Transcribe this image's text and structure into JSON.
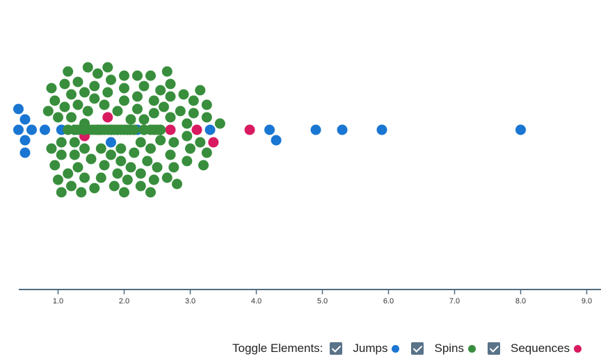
{
  "chart_data": {
    "type": "scatter",
    "x_ticks": [
      "1.0",
      "2.0",
      "3.0",
      "4.0",
      "5.0",
      "6.0",
      "7.0",
      "8.0",
      "9.0"
    ],
    "xlim": [
      0.3,
      9.2
    ],
    "colors": {
      "Jumps": "#1976d2",
      "Spins": "#388e3c",
      "Sequences": "#d81b60"
    },
    "series": [
      {
        "name": "Jumps",
        "x": [
          0.4,
          0.5,
          0.5,
          0.5,
          0.4,
          0.6,
          0.8,
          1.05,
          1.25,
          1.8,
          2.2,
          1.8,
          3.3,
          4.2,
          4.3,
          4.9,
          5.3,
          5.9,
          8.0
        ]
      },
      {
        "name": "Sequences",
        "x": [
          2.7,
          1.4,
          1.75,
          3.35,
          3.1,
          3.9
        ]
      },
      {
        "name": "Spins",
        "x": [
          1.4,
          1.6,
          1.8,
          2.0,
          2.25,
          2.45,
          1.25,
          1.4,
          1.65,
          1.9,
          2.1,
          2.3,
          2.55,
          1.05,
          1.2,
          1.45,
          1.7,
          1.95,
          2.15,
          2.4,
          2.7,
          1.0,
          1.25,
          1.5,
          1.7,
          1.95,
          2.2,
          2.45,
          2.75,
          2.95,
          3.15,
          1.05,
          1.3,
          1.55,
          1.75,
          2.0,
          2.2,
          2.45,
          2.7,
          2.95,
          3.25,
          0.9,
          1.2,
          1.4,
          1.65,
          1.9,
          2.1,
          2.35,
          2.6,
          2.85,
          3.05,
          3.25,
          0.85,
          1.1,
          1.3,
          1.55,
          1.8,
          2.0,
          2.25,
          2.5,
          2.7,
          3.0,
          3.25,
          3.45,
          0.95,
          1.15,
          1.4,
          1.6,
          1.85,
          2.05,
          2.3,
          2.55,
          2.75,
          3.05,
          3.2,
          1.1,
          1.3,
          1.55,
          1.75,
          2.0,
          2.25,
          2.45,
          2.7,
          2.95,
          3.15,
          0.95,
          1.2,
          1.45,
          1.7,
          1.95,
          2.2,
          2.4,
          2.65,
          2.9,
          0.9,
          1.15,
          1.4,
          1.65,
          1.9,
          2.15,
          2.4,
          2.65,
          1.0,
          1.25,
          1.5,
          1.75,
          2.0,
          2.3,
          2.55,
          2.8,
          1.05,
          1.3,
          1.55,
          1.8,
          2.05,
          2.3,
          2.5,
          1.15,
          1.4,
          1.65,
          1.9,
          2.15,
          2.4,
          1.35,
          1.6,
          1.8,
          2.05,
          2.3,
          1.4,
          1.6,
          1.85,
          2.1
        ]
      }
    ],
    "grid": false
  },
  "legend": {
    "title": "Toggle Elements:",
    "items": [
      {
        "label": "Jumps",
        "color": "#1976d2",
        "checked": true
      },
      {
        "label": "Spins",
        "color": "#388e3c",
        "checked": true
      },
      {
        "label": "Sequences",
        "color": "#d81b60",
        "checked": true
      }
    ]
  }
}
